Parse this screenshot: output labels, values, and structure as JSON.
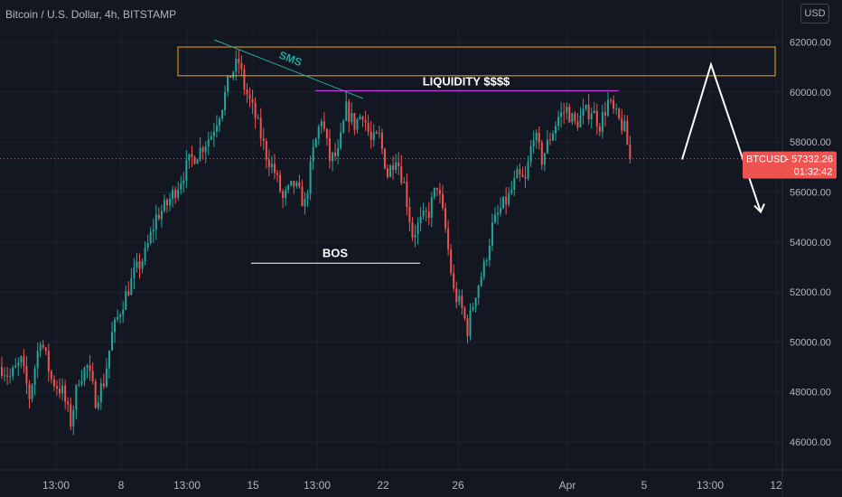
{
  "header": {
    "title": "Bitcoin / U.S. Dollar, 4h, BITSTAMP",
    "currency": "USD"
  },
  "price_tag": {
    "symbol": "BTCUSD",
    "price": "57332.26",
    "countdown": "01:32:42"
  },
  "annotations": {
    "sms": "SMS",
    "liquidity": "LIQUIDITY $$$$",
    "bos": "BOS"
  },
  "colors": {
    "background": "#131722",
    "up": "#26a69a",
    "down": "#ef5350",
    "zone": "#f7a21b",
    "sms_line": "#26a69a",
    "liquidity_line": "#e040fb",
    "text": "#b2b5be",
    "projection": "#ffffff"
  },
  "chart_data": {
    "type": "candlestick",
    "title": "Bitcoin / U.S. Dollar, 4h, BITSTAMP",
    "ylim": [
      44500,
      63500
    ],
    "y_ticks": [
      "46000.00",
      "48000.00",
      "50000.00",
      "52000.00",
      "54000.00",
      "56000.00",
      "58000.00",
      "60000.00",
      "62000.00"
    ],
    "x_ticks": [
      "13:00",
      "8",
      "13:00",
      "15",
      "13:00",
      "22",
      "26",
      "Apr",
      "5",
      "13:00",
      "12"
    ],
    "current_price": 57332.26,
    "anchors": [
      [
        0,
        49000
      ],
      [
        3,
        48600
      ],
      [
        7,
        49200
      ],
      [
        10,
        47800
      ],
      [
        14,
        50200
      ],
      [
        18,
        48500
      ],
      [
        22,
        48000
      ],
      [
        25,
        46800
      ],
      [
        28,
        48600
      ],
      [
        31,
        49000
      ],
      [
        34,
        47700
      ],
      [
        37,
        48400
      ],
      [
        40,
        50300
      ],
      [
        44,
        51600
      ],
      [
        48,
        52700
      ],
      [
        52,
        53500
      ],
      [
        56,
        55000
      ],
      [
        60,
        55500
      ],
      [
        64,
        56300
      ],
      [
        68,
        57200
      ],
      [
        72,
        57700
      ],
      [
        76,
        58300
      ],
      [
        80,
        59500
      ],
      [
        83,
        60700
      ],
      [
        86,
        61200
      ],
      [
        88,
        60200
      ],
      [
        92,
        59000
      ],
      [
        96,
        57500
      ],
      [
        99,
        56800
      ],
      [
        102,
        55700
      ],
      [
        106,
        56300
      ],
      [
        110,
        55500
      ],
      [
        113,
        57600
      ],
      [
        116,
        59000
      ],
      [
        119,
        57300
      ],
      [
        122,
        57500
      ],
      [
        125,
        59300
      ],
      [
        128,
        58700
      ],
      [
        131,
        59200
      ],
      [
        134,
        58000
      ],
      [
        137,
        58200
      ],
      [
        140,
        56700
      ],
      [
        143,
        57500
      ],
      [
        146,
        56300
      ],
      [
        149,
        54300
      ],
      [
        152,
        54800
      ],
      [
        155,
        55200
      ],
      [
        158,
        56300
      ],
      [
        161,
        54500
      ],
      [
        164,
        52000
      ],
      [
        167,
        51300
      ],
      [
        169,
        50500
      ],
      [
        172,
        52000
      ],
      [
        175,
        53000
      ],
      [
        178,
        54600
      ],
      [
        181,
        55300
      ],
      [
        184,
        55800
      ],
      [
        187,
        56600
      ],
      [
        190,
        56400
      ],
      [
        193,
        58400
      ],
      [
        196,
        57300
      ],
      [
        199,
        58200
      ],
      [
        202,
        59000
      ],
      [
        205,
        59300
      ],
      [
        208,
        58700
      ],
      [
        211,
        59100
      ],
      [
        214,
        59300
      ],
      [
        217,
        58700
      ],
      [
        220,
        59600
      ],
      [
        223,
        59000
      ],
      [
        226,
        58500
      ],
      [
        228,
        57300
      ]
    ],
    "zones": [
      {
        "label": "",
        "y_range": [
          60650,
          61800
        ]
      }
    ],
    "levels": [
      {
        "label": "LIQUIDITY $$$$",
        "y": 60050
      },
      {
        "label": "BOS",
        "y": 53150
      }
    ],
    "trendlines": [
      {
        "label": "SMS",
        "from": [
          61300,
          "start"
        ],
        "to": [
          59700,
          "end"
        ]
      }
    ],
    "projection": [
      57300,
      61100,
      55200
    ]
  }
}
